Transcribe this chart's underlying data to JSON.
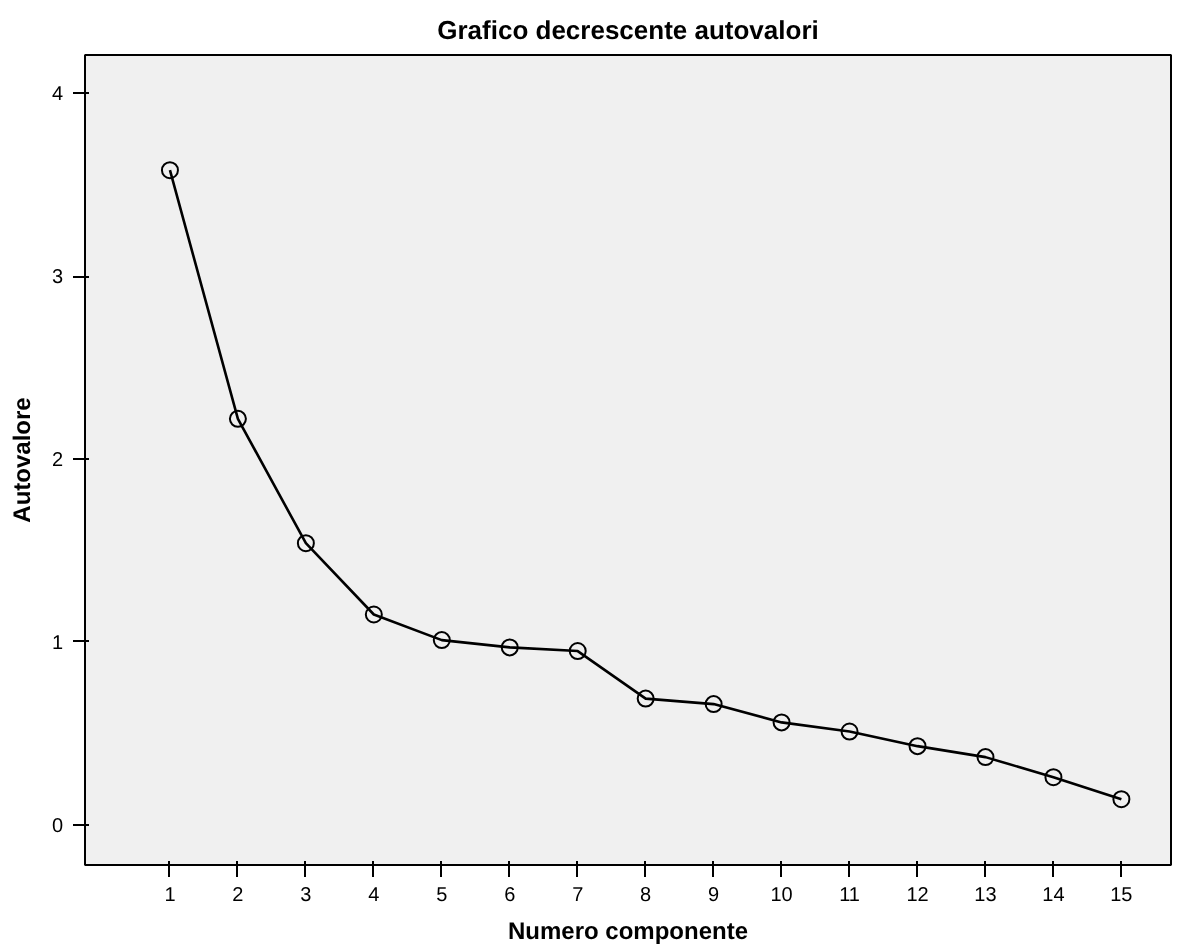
{
  "chart_data": {
    "type": "line",
    "title": "Grafico decrescente autovalori",
    "xlabel": "Numero componente",
    "ylabel": "Autovalore",
    "x": [
      1,
      2,
      3,
      4,
      5,
      6,
      7,
      8,
      9,
      10,
      11,
      12,
      13,
      14,
      15
    ],
    "series": [
      {
        "color": "#000000",
        "values": [
          3.58,
          2.22,
          1.54,
          1.15,
          1.01,
          0.97,
          0.95,
          0.69,
          0.66,
          0.56,
          0.51,
          0.43,
          0.37,
          0.26,
          0.14
        ]
      }
    ],
    "xlim": [
      -0.25,
      15.73
    ],
    "xticks": [
      1,
      2,
      3,
      4,
      5,
      6,
      7,
      8,
      9,
      10,
      11,
      12,
      13,
      14,
      15
    ],
    "ylim": [
      -0.22,
      4.21
    ],
    "yticks": [
      0,
      1,
      2,
      3,
      4
    ],
    "grid": false,
    "marker": "circle",
    "line_style": "solid"
  }
}
